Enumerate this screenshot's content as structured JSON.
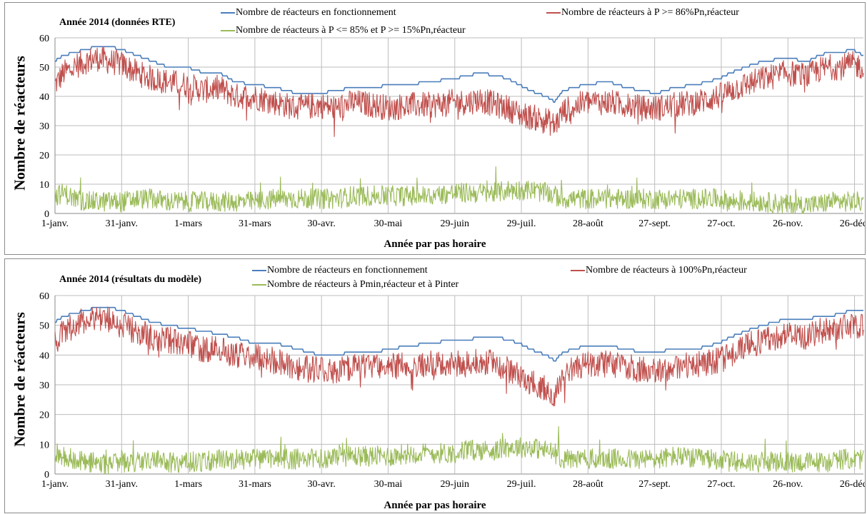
{
  "chart_data": [
    {
      "type": "line",
      "title": "Année 2014 (données RTE)",
      "xlabel": "Année par pas horaire",
      "ylabel": "Nombre de réacteurs",
      "ylim": [
        0,
        60
      ],
      "yticks": [
        "0",
        "10",
        "20",
        "30",
        "40",
        "50",
        "60"
      ],
      "x_tick_labels": [
        "1-janv.",
        "31-janv.",
        "1-mars",
        "31-mars",
        "30-avr.",
        "30-mai",
        "29-juin",
        "29-juil.",
        "28-août",
        "27-sept.",
        "27-oct.",
        "26-nov.",
        "26-déc."
      ],
      "x_unit": "day of year 2014",
      "xlim": [
        1,
        365
      ],
      "grid": true,
      "legend_position": "top",
      "series": [
        {
          "name": "Nombre de réacteurs en fonctionnement",
          "color": "#4a7ebb",
          "x": [
            1,
            5,
            10,
            15,
            20,
            25,
            31,
            38,
            45,
            52,
            60,
            68,
            75,
            82,
            90,
            100,
            110,
            120,
            128,
            135,
            145,
            152,
            160,
            170,
            180,
            187,
            192,
            200,
            205,
            210,
            215,
            222,
            226,
            230,
            240,
            250,
            258,
            265,
            272,
            280,
            290,
            300,
            305,
            312,
            320,
            330,
            340,
            345,
            350,
            355,
            360,
            365
          ],
          "values": [
            52,
            54,
            55,
            56,
            57,
            57,
            56,
            54,
            52,
            50,
            50,
            48,
            48,
            45,
            44,
            43,
            41,
            41,
            42,
            43,
            43,
            44,
            44,
            45,
            46,
            47,
            48,
            47,
            46,
            44,
            42,
            40,
            38,
            42,
            44,
            45,
            43,
            42,
            41,
            43,
            44,
            46,
            48,
            50,
            52,
            53,
            52,
            54,
            55,
            55,
            56,
            54
          ]
        },
        {
          "name": "Nombre de réacteurs à P >= 86%Pn,réacteur",
          "color": "#c0504d",
          "x": [
            1,
            5,
            10,
            15,
            20,
            25,
            31,
            38,
            45,
            52,
            60,
            68,
            75,
            82,
            90,
            100,
            110,
            120,
            128,
            135,
            145,
            152,
            160,
            170,
            180,
            187,
            192,
            200,
            205,
            210,
            215,
            222,
            226,
            230,
            240,
            250,
            258,
            265,
            272,
            280,
            290,
            300,
            305,
            312,
            320,
            330,
            340,
            345,
            350,
            355,
            360,
            365
          ],
          "values": [
            44,
            48,
            50,
            52,
            53,
            52,
            51,
            48,
            46,
            45,
            44,
            42,
            43,
            40,
            40,
            38,
            36,
            37,
            36,
            38,
            37,
            36,
            37,
            37,
            38,
            38,
            39,
            37,
            36,
            34,
            33,
            32,
            30,
            35,
            38,
            38,
            37,
            36,
            36,
            37,
            38,
            40,
            42,
            44,
            46,
            48,
            47,
            49,
            50,
            50,
            51,
            50
          ]
        },
        {
          "name": "Nombre de réacteurs à P <= 85% et P >= 15%Pn,réacteur",
          "color": "#9bbb59",
          "x": [
            1,
            5,
            10,
            15,
            20,
            25,
            31,
            38,
            45,
            52,
            60,
            68,
            75,
            82,
            90,
            100,
            110,
            120,
            128,
            135,
            145,
            152,
            160,
            170,
            180,
            187,
            192,
            200,
            205,
            210,
            215,
            222,
            226,
            230,
            240,
            250,
            258,
            265,
            272,
            280,
            290,
            300,
            305,
            312,
            320,
            330,
            340,
            345,
            350,
            355,
            360,
            365
          ],
          "values": [
            6,
            7,
            5,
            4,
            4,
            4,
            4,
            5,
            5,
            4,
            4,
            4,
            4,
            4,
            4,
            5,
            5,
            5,
            5,
            6,
            6,
            6,
            6,
            6,
            7,
            7,
            7,
            7,
            8,
            8,
            8,
            7,
            6,
            5,
            5,
            5,
            5,
            5,
            5,
            5,
            5,
            5,
            4,
            4,
            4,
            3,
            3,
            3,
            4,
            4,
            4,
            4
          ]
        }
      ]
    },
    {
      "type": "line",
      "title": "Année 2014 (résultats du modèle)",
      "xlabel": "Année par pas horaire",
      "ylabel": "Nombre de réacteurs",
      "ylim": [
        0,
        60
      ],
      "yticks": [
        "0",
        "10",
        "20",
        "30",
        "40",
        "50",
        "60"
      ],
      "x_tick_labels": [
        "1-janv.",
        "31-janv.",
        "1-mars",
        "31-mars",
        "30-avr.",
        "30-mai",
        "29-juin",
        "29-juil.",
        "28-août",
        "27-sept.",
        "27-oct.",
        "26-nov.",
        "26-déc."
      ],
      "x_unit": "day of year 2014",
      "xlim": [
        1,
        365
      ],
      "grid": true,
      "legend_position": "top",
      "series": [
        {
          "name": "Nombre de réacteurs en fonctionnement",
          "color": "#4a7ebb",
          "x": [
            1,
            5,
            10,
            15,
            20,
            25,
            31,
            38,
            45,
            52,
            60,
            68,
            75,
            82,
            90,
            100,
            110,
            120,
            128,
            135,
            145,
            152,
            160,
            170,
            180,
            187,
            192,
            200,
            205,
            210,
            215,
            222,
            226,
            230,
            240,
            250,
            258,
            265,
            272,
            280,
            290,
            300,
            305,
            312,
            320,
            330,
            340,
            345,
            350,
            355,
            360,
            365
          ],
          "values": [
            51,
            53,
            54,
            55,
            56,
            56,
            55,
            53,
            51,
            50,
            49,
            48,
            47,
            46,
            44,
            44,
            42,
            40,
            40,
            41,
            41,
            42,
            43,
            44,
            45,
            45,
            46,
            46,
            45,
            44,
            42,
            40,
            38,
            41,
            43,
            43,
            42,
            41,
            41,
            42,
            42,
            44,
            46,
            48,
            50,
            52,
            52,
            53,
            53,
            54,
            55,
            55
          ]
        },
        {
          "name": "Nombre de réacteurs à 100%Pn,réacteur",
          "color": "#c0504d",
          "x": [
            1,
            5,
            10,
            15,
            20,
            25,
            31,
            38,
            45,
            52,
            60,
            68,
            75,
            82,
            90,
            100,
            110,
            120,
            128,
            135,
            145,
            152,
            160,
            170,
            180,
            187,
            192,
            200,
            205,
            210,
            215,
            222,
            226,
            230,
            240,
            250,
            258,
            265,
            272,
            280,
            290,
            300,
            305,
            312,
            320,
            330,
            340,
            345,
            350,
            355,
            360,
            365
          ],
          "values": [
            44,
            48,
            50,
            52,
            53,
            52,
            50,
            48,
            46,
            45,
            44,
            42,
            42,
            40,
            40,
            38,
            36,
            35,
            35,
            36,
            37,
            36,
            37,
            37,
            37,
            37,
            38,
            37,
            35,
            33,
            31,
            29,
            27,
            34,
            37,
            37,
            36,
            35,
            35,
            36,
            37,
            38,
            40,
            43,
            45,
            47,
            46,
            48,
            49,
            49,
            50,
            50
          ]
        },
        {
          "name": "Nombre de réacteurs à Pmin,réacteur et à Pinter",
          "color": "#9bbb59",
          "x": [
            1,
            5,
            10,
            15,
            20,
            25,
            31,
            38,
            45,
            52,
            60,
            68,
            75,
            82,
            90,
            100,
            110,
            120,
            128,
            135,
            145,
            152,
            160,
            170,
            180,
            187,
            192,
            200,
            205,
            210,
            215,
            222,
            226,
            230,
            240,
            250,
            258,
            265,
            272,
            280,
            290,
            300,
            305,
            312,
            320,
            330,
            340,
            345,
            350,
            355,
            360,
            365
          ],
          "values": [
            7,
            6,
            5,
            4,
            4,
            3,
            4,
            4,
            5,
            4,
            4,
            4,
            5,
            5,
            5,
            5,
            5,
            5,
            6,
            6,
            6,
            6,
            7,
            7,
            7,
            8,
            8,
            8,
            9,
            9,
            9,
            8,
            7,
            5,
            5,
            5,
            5,
            5,
            5,
            6,
            5,
            5,
            4,
            4,
            4,
            4,
            4,
            4,
            4,
            5,
            5,
            5
          ]
        }
      ]
    }
  ]
}
